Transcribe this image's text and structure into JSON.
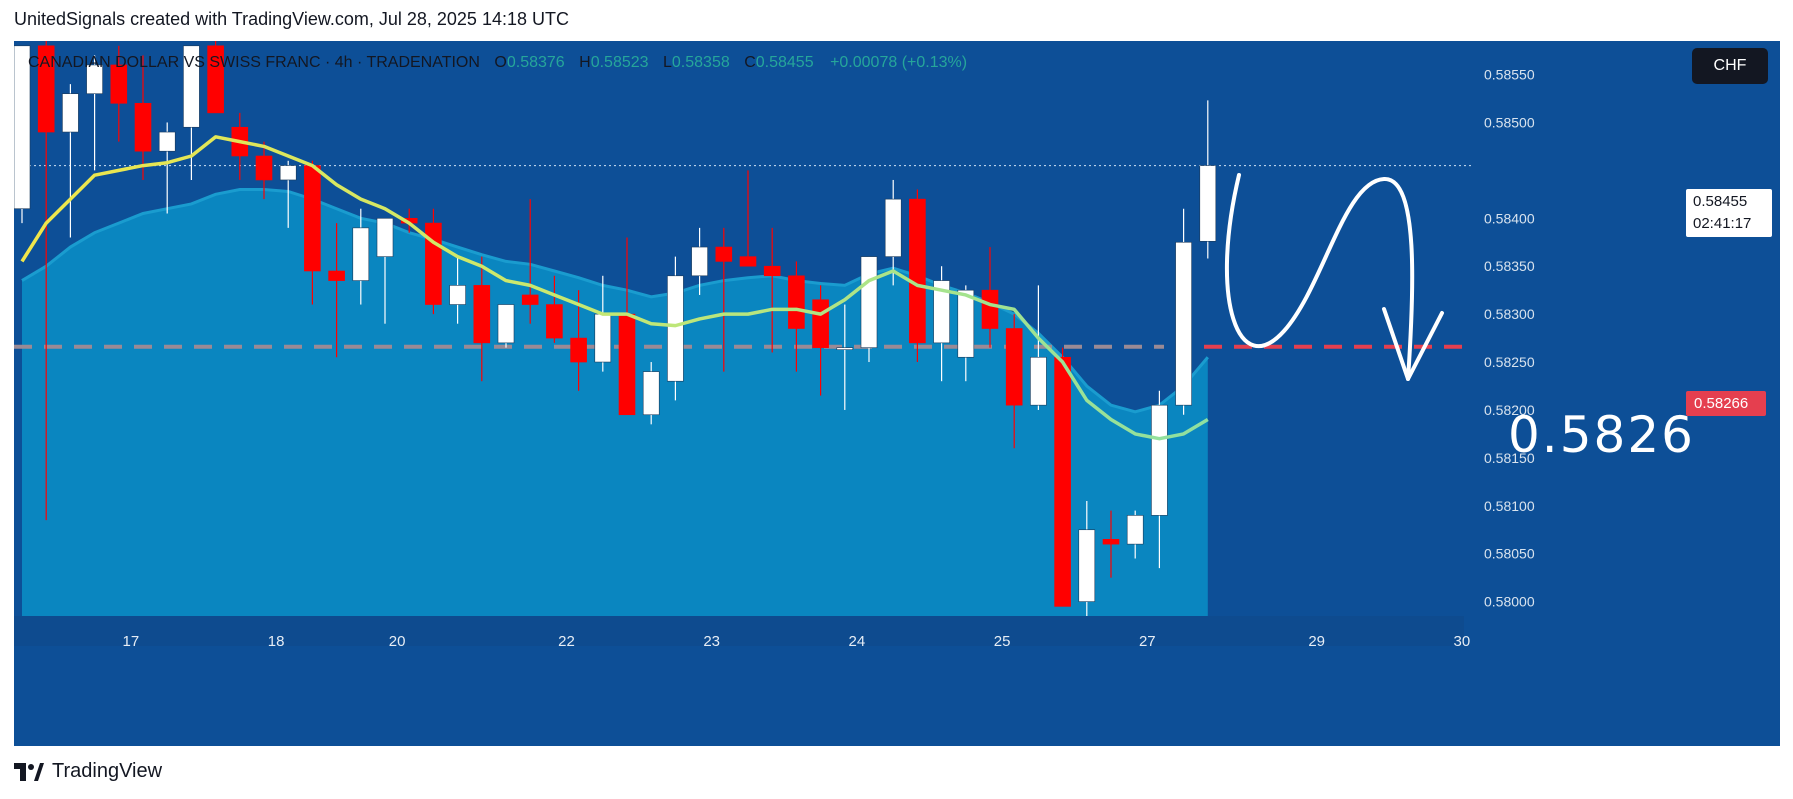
{
  "caption": "UnitedSignals created with TradingView.com, Jul 28, 2025 14:18 UTC",
  "legend": {
    "symbol": "CANADIAN DOLLAR VS SWISS FRANC · 4h · TRADENATION",
    "o_key": "O",
    "o_val": "0.58376",
    "h_key": "H",
    "h_val": "0.58523",
    "l_key": "L",
    "l_val": "0.58358",
    "c_key": "C",
    "c_val": "0.58455",
    "change": "+0.00078 (+0.13%)"
  },
  "currency_button": "CHF",
  "last_price": {
    "price": "0.58455",
    "countdown": "02:41:17"
  },
  "level": {
    "tag": "0.58266",
    "big_label": "0.5826",
    "value": 0.58266
  },
  "footer": {
    "brand": "TradingView"
  },
  "colors": {
    "background": "#0d4f97",
    "area_fill": "#0a86c0",
    "area_edge": "#1a9ccf",
    "ema_yellow": "#f0e64a",
    "ema_green": "#8fe0a0",
    "bull": "#ffffff",
    "bear": "#ff0000",
    "level_line": "#e53f4f",
    "level_line_left": "#9a8a95"
  },
  "chart_data": {
    "type": "candlestick",
    "timeframe": "4h",
    "y_ticks": [
      0.5855,
      0.585,
      0.584,
      0.5835,
      0.583,
      0.5825,
      0.582,
      0.5815,
      0.581,
      0.5805,
      0.58
    ],
    "y_tick_labels": [
      "0.58550",
      "0.58500",
      "0.58400",
      "0.58350",
      "0.58300",
      "0.58250",
      "0.58200",
      "0.58150",
      "0.58100",
      "0.58050",
      "0.58000"
    ],
    "ylim": [
      0.57985,
      0.58585
    ],
    "x_ticks": [
      {
        "label": "17",
        "i": 4.5
      },
      {
        "label": "18",
        "i": 10.5
      },
      {
        "label": "20",
        "i": 15.5
      },
      {
        "label": "22",
        "i": 22.5
      },
      {
        "label": "23",
        "i": 28.5
      },
      {
        "label": "24",
        "i": 34.5
      },
      {
        "label": "25",
        "i": 40.5
      },
      {
        "label": "27",
        "i": 46.5
      },
      {
        "label": "29",
        "i": 53.5
      },
      {
        "label": "30",
        "i": 59.5
      }
    ],
    "candles": [
      {
        "o": 0.5841,
        "h": 0.5858,
        "l": 0.58395,
        "c": 0.5858
      },
      {
        "o": 0.5858,
        "h": 0.5859,
        "l": 0.58085,
        "c": 0.5849
      },
      {
        "o": 0.5849,
        "h": 0.5854,
        "l": 0.5838,
        "c": 0.5853
      },
      {
        "o": 0.5853,
        "h": 0.5857,
        "l": 0.5845,
        "c": 0.5856
      },
      {
        "o": 0.5856,
        "h": 0.5858,
        "l": 0.5848,
        "c": 0.5852
      },
      {
        "o": 0.5852,
        "h": 0.5857,
        "l": 0.5844,
        "c": 0.5847
      },
      {
        "o": 0.5847,
        "h": 0.585,
        "l": 0.58405,
        "c": 0.5849
      },
      {
        "o": 0.58495,
        "h": 0.5858,
        "l": 0.5844,
        "c": 0.5858
      },
      {
        "o": 0.5858,
        "h": 0.5859,
        "l": 0.5851,
        "c": 0.5851
      },
      {
        "o": 0.58495,
        "h": 0.5851,
        "l": 0.5844,
        "c": 0.58465
      },
      {
        "o": 0.58465,
        "h": 0.5848,
        "l": 0.5842,
        "c": 0.5844
      },
      {
        "o": 0.5844,
        "h": 0.5846,
        "l": 0.5839,
        "c": 0.58455
      },
      {
        "o": 0.58455,
        "h": 0.5846,
        "l": 0.5831,
        "c": 0.58345
      },
      {
        "o": 0.58345,
        "h": 0.58395,
        "l": 0.58255,
        "c": 0.58335
      },
      {
        "o": 0.58335,
        "h": 0.5841,
        "l": 0.5831,
        "c": 0.5839
      },
      {
        "o": 0.5836,
        "h": 0.584,
        "l": 0.5829,
        "c": 0.584
      },
      {
        "o": 0.584,
        "h": 0.5841,
        "l": 0.58385,
        "c": 0.58395
      },
      {
        "o": 0.58395,
        "h": 0.5841,
        "l": 0.583,
        "c": 0.5831
      },
      {
        "o": 0.5831,
        "h": 0.5836,
        "l": 0.5829,
        "c": 0.5833
      },
      {
        "o": 0.5833,
        "h": 0.5836,
        "l": 0.5823,
        "c": 0.5827
      },
      {
        "o": 0.5827,
        "h": 0.5831,
        "l": 0.58265,
        "c": 0.5831
      },
      {
        "o": 0.5832,
        "h": 0.5842,
        "l": 0.5829,
        "c": 0.5831
      },
      {
        "o": 0.5831,
        "h": 0.5834,
        "l": 0.5827,
        "c": 0.58275
      },
      {
        "o": 0.58275,
        "h": 0.58325,
        "l": 0.5822,
        "c": 0.5825
      },
      {
        "o": 0.5825,
        "h": 0.5834,
        "l": 0.5824,
        "c": 0.583
      },
      {
        "o": 0.583,
        "h": 0.5838,
        "l": 0.58195,
        "c": 0.58195
      },
      {
        "o": 0.58195,
        "h": 0.5825,
        "l": 0.58185,
        "c": 0.5824
      },
      {
        "o": 0.5823,
        "h": 0.5836,
        "l": 0.5821,
        "c": 0.5834
      },
      {
        "o": 0.5834,
        "h": 0.5839,
        "l": 0.5832,
        "c": 0.5837
      },
      {
        "o": 0.5837,
        "h": 0.5839,
        "l": 0.5824,
        "c": 0.58355
      },
      {
        "o": 0.5836,
        "h": 0.5845,
        "l": 0.5835,
        "c": 0.5835
      },
      {
        "o": 0.5835,
        "h": 0.5839,
        "l": 0.5826,
        "c": 0.5834
      },
      {
        "o": 0.5834,
        "h": 0.58355,
        "l": 0.5824,
        "c": 0.58285
      },
      {
        "o": 0.58315,
        "h": 0.5833,
        "l": 0.58215,
        "c": 0.58265
      },
      {
        "o": 0.58265,
        "h": 0.5831,
        "l": 0.582,
        "c": 0.58265
      },
      {
        "o": 0.58265,
        "h": 0.5836,
        "l": 0.5825,
        "c": 0.5836
      },
      {
        "o": 0.5836,
        "h": 0.5844,
        "l": 0.5833,
        "c": 0.5842
      },
      {
        "o": 0.5842,
        "h": 0.5843,
        "l": 0.5825,
        "c": 0.5827
      },
      {
        "o": 0.5827,
        "h": 0.5835,
        "l": 0.5823,
        "c": 0.58335
      },
      {
        "o": 0.58255,
        "h": 0.5833,
        "l": 0.5823,
        "c": 0.58325
      },
      {
        "o": 0.58325,
        "h": 0.5837,
        "l": 0.58265,
        "c": 0.58285
      },
      {
        "o": 0.58285,
        "h": 0.583,
        "l": 0.5816,
        "c": 0.58205
      },
      {
        "o": 0.58205,
        "h": 0.5833,
        "l": 0.582,
        "c": 0.58255
      },
      {
        "o": 0.58255,
        "h": 0.58265,
        "l": 0.57995,
        "c": 0.57995
      },
      {
        "o": 0.58,
        "h": 0.58105,
        "l": 0.57985,
        "c": 0.58075
      },
      {
        "o": 0.58065,
        "h": 0.58095,
        "l": 0.58025,
        "c": 0.5806
      },
      {
        "o": 0.5806,
        "h": 0.58095,
        "l": 0.58045,
        "c": 0.5809
      },
      {
        "o": 0.5809,
        "h": 0.5822,
        "l": 0.58035,
        "c": 0.58205
      },
      {
        "o": 0.58205,
        "h": 0.5841,
        "l": 0.58195,
        "c": 0.58375
      },
      {
        "o": 0.58376,
        "h": 0.58523,
        "l": 0.58358,
        "c": 0.58455
      }
    ],
    "ema_fast": [
      0.58355,
      0.58395,
      0.5842,
      0.58445,
      0.5845,
      0.58455,
      0.58458,
      0.58465,
      0.58485,
      0.5848,
      0.58475,
      0.58465,
      0.58455,
      0.58435,
      0.5842,
      0.5841,
      0.58395,
      0.58375,
      0.5836,
      0.5835,
      0.58335,
      0.5833,
      0.5832,
      0.5831,
      0.583,
      0.583,
      0.5829,
      0.58288,
      0.58295,
      0.583,
      0.583,
      0.58305,
      0.58305,
      0.583,
      0.58315,
      0.58335,
      0.58345,
      0.5833,
      0.58325,
      0.5832,
      0.5831,
      0.58305,
      0.58275,
      0.5825,
      0.5821,
      0.5819,
      0.58175,
      0.5817,
      0.58175,
      0.5819
    ],
    "ema_slow": [
      0.58335,
      0.5835,
      0.5837,
      0.58385,
      0.58395,
      0.58405,
      0.5841,
      0.58415,
      0.58425,
      0.5843,
      0.5843,
      0.58428,
      0.5842,
      0.5841,
      0.584,
      0.58395,
      0.58385,
      0.58378,
      0.5837,
      0.58362,
      0.58355,
      0.58352,
      0.58345,
      0.58338,
      0.5833,
      0.58325,
      0.58318,
      0.58322,
      0.5833,
      0.58335,
      0.58338,
      0.5834,
      0.58335,
      0.58332,
      0.5833,
      0.58342,
      0.58348,
      0.5834,
      0.5833,
      0.58322,
      0.58312,
      0.583,
      0.5828,
      0.58255,
      0.58225,
      0.58205,
      0.58198,
      0.58205,
      0.58225,
      0.58255
    ]
  }
}
